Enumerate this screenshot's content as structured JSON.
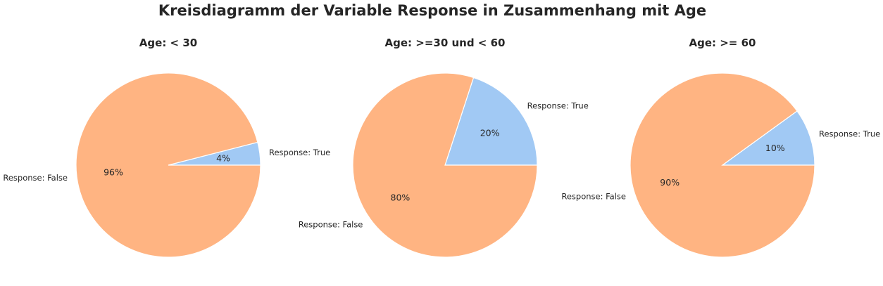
{
  "chart_data": {
    "suptitle": "Kreisdiagramm der Variable Response in Zusammenhang mit Age",
    "colors": {
      "True": "#a1c9f4",
      "False": "#ffb482"
    },
    "charts": [
      {
        "type": "pie",
        "title": "Age: < 30",
        "slices": [
          {
            "label": "Response: True",
            "value": 4,
            "pct_label": "4%"
          },
          {
            "label": "Response: False",
            "value": 96,
            "pct_label": "96%"
          }
        ]
      },
      {
        "type": "pie",
        "title": "Age: >=30 und < 60",
        "slices": [
          {
            "label": "Response: True",
            "value": 20,
            "pct_label": "20%"
          },
          {
            "label": "Response: False",
            "value": 80,
            "pct_label": "80%"
          }
        ]
      },
      {
        "type": "pie",
        "title": "Age: >= 60",
        "slices": [
          {
            "label": "Response: True",
            "value": 10,
            "pct_label": "10%"
          },
          {
            "label": "Response: False",
            "value": 90,
            "pct_label": "90%"
          }
        ]
      }
    ]
  }
}
